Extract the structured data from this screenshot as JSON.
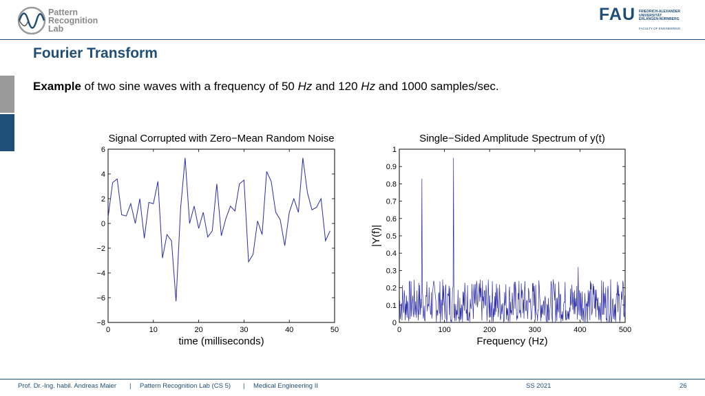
{
  "header": {
    "lab_logo_lines": [
      "Pattern",
      "Recognition",
      "Lab"
    ],
    "fau_word": "FAU",
    "fau_sub_lines": [
      "FRIEDRICH-ALEXANDER",
      "UNIVERSITÄT",
      "ERLANGEN-NÜRNBERG"
    ],
    "fau_faculty": "FACULTY OF ENGINEERING"
  },
  "slide": {
    "title": "Fourier Transform",
    "intro_bold": "Example",
    "intro_a": " of two sine waves with a frequency of 50 ",
    "intro_unit1": "Hz",
    "intro_b": " and 120 ",
    "intro_unit2": "Hz",
    "intro_c": " and 1000 samples/sec."
  },
  "chart_data": [
    {
      "type": "line",
      "title": "Signal Corrupted with Zero−Mean Random Noise",
      "xlabel": "time (milliseconds)",
      "ylabel": "",
      "xlim": [
        0,
        50
      ],
      "ylim": [
        -8,
        6
      ],
      "xticks": [
        0,
        10,
        20,
        30,
        40,
        50
      ],
      "yticks": [
        -8,
        -6,
        -4,
        -2,
        0,
        2,
        4,
        6
      ],
      "grid": false,
      "line_color": "#2a2aa8",
      "x": [
        0,
        1,
        2,
        3,
        4,
        5,
        6,
        7,
        8,
        9,
        10,
        11,
        12,
        13,
        14,
        15,
        16,
        17,
        18,
        19,
        20,
        21,
        22,
        23,
        24,
        25,
        26,
        27,
        28,
        29,
        30,
        31,
        32,
        33,
        34,
        35,
        36,
        37,
        38,
        39,
        40,
        41,
        42,
        43,
        44,
        45,
        46,
        47,
        48,
        49
      ],
      "y": [
        0.5,
        3.3,
        3.6,
        0.7,
        0.6,
        1.6,
        0.0,
        2.0,
        -1.2,
        1.7,
        1.6,
        3.4,
        -2.8,
        -0.9,
        -1.4,
        -6.3,
        1.2,
        5.3,
        0.0,
        1.4,
        -0.4,
        0.9,
        -1.1,
        -0.6,
        3.2,
        -1.0,
        0.4,
        1.4,
        1.0,
        3.2,
        3.5,
        -3.1,
        -2.5,
        0.2,
        -0.9,
        4.2,
        3.4,
        0.9,
        0.3,
        -1.8,
        0.9,
        2.0,
        0.9,
        5.3,
        2.5,
        1.1,
        1.3,
        2.0,
        -1.4,
        -0.6
      ]
    },
    {
      "type": "line",
      "title": "Single−Sided Amplitude Spectrum of y(t)",
      "xlabel": "Frequency (Hz)",
      "ylabel": "|Y(f)|",
      "xlim": [
        0,
        500
      ],
      "ylim": [
        0,
        1
      ],
      "xticks": [
        0,
        100,
        200,
        300,
        400,
        500
      ],
      "yticks": [
        0,
        0.1,
        0.2,
        0.3,
        0.4,
        0.5,
        0.6,
        0.7,
        0.8,
        0.9,
        1
      ],
      "grid": false,
      "line_color": "#2a2aa8",
      "peaks": [
        {
          "x": 50,
          "y": 0.83
        },
        {
          "x": 120,
          "y": 0.95
        },
        {
          "x": 396,
          "y": 0.32
        }
      ],
      "noise_floor_range": [
        0,
        0.25
      ]
    }
  ],
  "footer": {
    "author": "Prof. Dr.-Ing. habil. Andreas Maier",
    "sep1": "|",
    "lab": "Pattern Recognition Lab (CS 5)",
    "sep2": "|",
    "course": "Medical Engineering II",
    "term": "SS 2021",
    "page": "26"
  }
}
